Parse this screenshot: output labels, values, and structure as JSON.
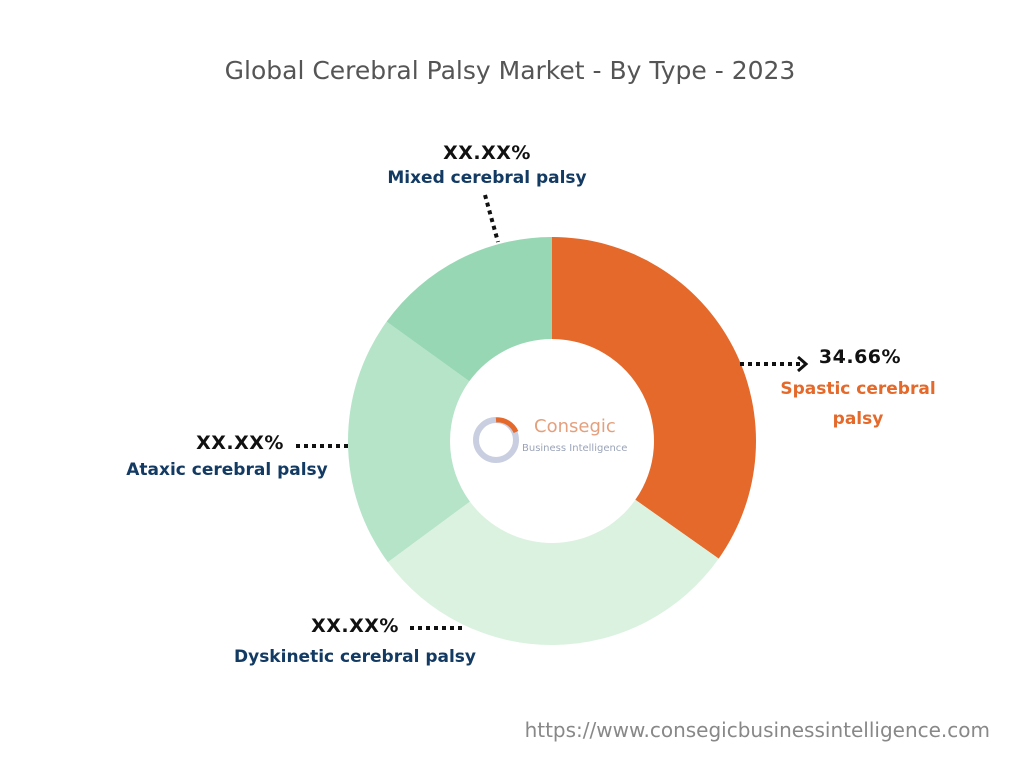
{
  "chart_data": {
    "type": "donut",
    "title": "Global Cerebral Palsy Market - By Type - 2023",
    "categories": [
      "Spastic cerebral palsy",
      "Dyskinetic cerebral palsy",
      "Ataxic cerebral palsy",
      "Mixed cerebral palsy"
    ],
    "values": [
      34.66,
      30,
      20,
      15
    ],
    "value_labels": [
      "34.66%",
      "XX.XX%",
      "XX.XX%",
      "XX.XX%"
    ],
    "colors": [
      "#e4692a",
      "#dcf2e0",
      "#b5e4c9",
      "#98d7b4"
    ]
  },
  "logo": {
    "name": "Consegic",
    "tagline": "Business Intelligence"
  },
  "source": "https://www.consegicbusinessintelligence.com"
}
